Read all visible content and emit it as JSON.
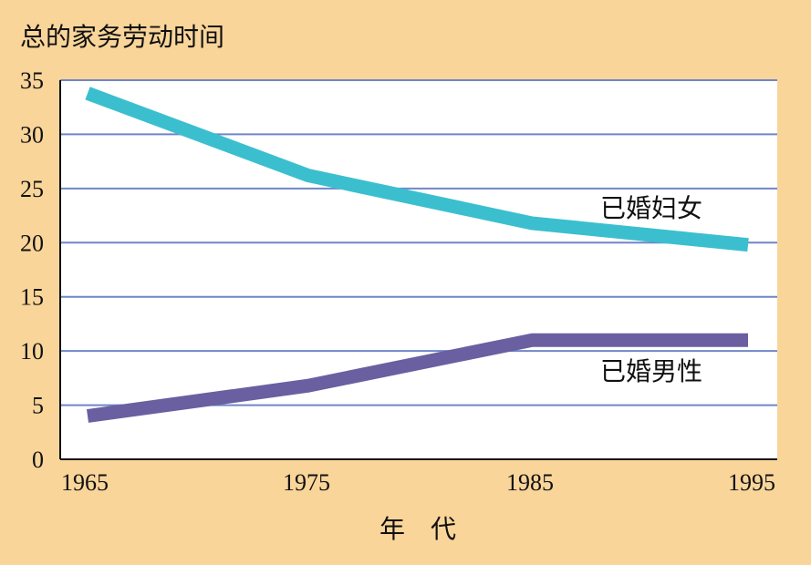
{
  "chart_data": {
    "type": "line",
    "ylabel": "总的家务劳动时间",
    "xlabel": "年　代",
    "x": [
      1965,
      1975,
      1985,
      1995
    ],
    "x_tick_labels": [
      "1965",
      "1975",
      "1985",
      "1995"
    ],
    "ylim": [
      0,
      35
    ],
    "y_ticks": [
      0,
      5,
      10,
      15,
      20,
      25,
      30,
      35
    ],
    "grid": true,
    "series": [
      {
        "name": "已婚妇女",
        "values": [
          33.8,
          26.2,
          21.8,
          19.8
        ],
        "color": "#3bbfcf"
      },
      {
        "name": "已婚男性",
        "values": [
          4.0,
          6.8,
          11.0,
          11.0
        ],
        "color": "#6a5fa0"
      }
    ]
  },
  "colors": {
    "background": "#f9d59a",
    "plot_background": "#ffffff",
    "grid": "#6f86c8",
    "axis": "#111111"
  }
}
